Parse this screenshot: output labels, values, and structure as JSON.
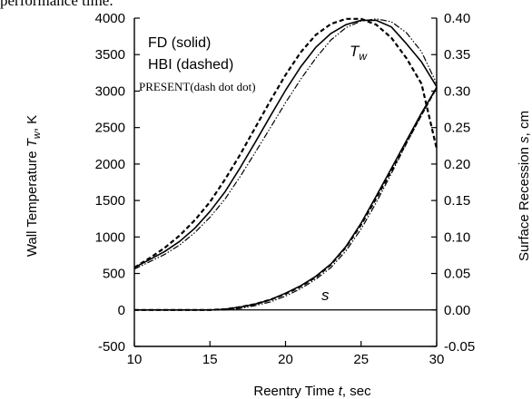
{
  "caption_fragment": "performance time.",
  "chart_data": {
    "type": "line",
    "xlabel": "Reentry Time t, sec",
    "xlabel_parts": [
      "Reentry Time ",
      "t",
      ", sec"
    ],
    "ylabel_left": "Wall Temperature T_w, K",
    "ylabel_left_parts": [
      "Wall Temperature ",
      "T",
      "w",
      ", K"
    ],
    "ylabel_right": "Surface Recession s, cm",
    "ylabel_right_parts": [
      "Surface Recession ",
      "s",
      ", cm"
    ],
    "xlim": [
      10,
      30
    ],
    "ylim_left": [
      -500,
      4000
    ],
    "ylim_right": [
      -0.05,
      0.4
    ],
    "x_ticks": [
      "10",
      "15",
      "20",
      "25",
      "30"
    ],
    "y_left_ticks": [
      "-500",
      "0",
      "500",
      "1000",
      "1500",
      "2000",
      "2500",
      "3000",
      "3500",
      "4000"
    ],
    "y_right_ticks": [
      "-0.05",
      "0.00",
      "0.05",
      "0.10",
      "0.15",
      "0.20",
      "0.25",
      "0.30",
      "0.35",
      "0.40"
    ],
    "legend": [
      "FD (solid)",
      "HBI (dashed)",
      "PRESENT(dash dot dot)"
    ],
    "annotations": {
      "tw_main": "T",
      "tw_sub": "w",
      "s": "s"
    },
    "x": [
      10,
      11,
      12,
      13,
      14,
      15,
      16,
      17,
      18,
      19,
      20,
      21,
      22,
      23,
      24,
      25,
      26,
      27,
      28,
      29,
      30
    ],
    "series": [
      {
        "name": "FD (solid)",
        "axis": "left",
        "style": "solid",
        "values": [
          580,
          690,
          800,
          940,
          1120,
          1350,
          1620,
          1950,
          2300,
          2660,
          3010,
          3330,
          3600,
          3790,
          3910,
          3970,
          3970,
          3880,
          3650,
          3400,
          3060
        ]
      },
      {
        "name": "HBI (dashed)",
        "axis": "left",
        "style": "dashed",
        "values": [
          580,
          710,
          850,
          1020,
          1230,
          1480,
          1790,
          2130,
          2500,
          2870,
          3220,
          3530,
          3770,
          3920,
          3990,
          3990,
          3910,
          3730,
          3450,
          3100,
          2210
        ]
      },
      {
        "name": "PRESENT(dash dot dot)",
        "axis": "left",
        "style": "dashdotdot",
        "values": [
          560,
          660,
          760,
          890,
          1060,
          1270,
          1520,
          1830,
          2160,
          2500,
          2840,
          3160,
          3450,
          3700,
          3870,
          3960,
          3990,
          3950,
          3800,
          3540,
          3100
        ]
      },
      {
        "name": "FD (solid)",
        "axis": "right",
        "style": "solid",
        "values": [
          0.0,
          0.0,
          0.0,
          0.0,
          0.0,
          0.0,
          0.001,
          0.004,
          0.008,
          0.014,
          0.023,
          0.033,
          0.046,
          0.063,
          0.087,
          0.119,
          0.156,
          0.194,
          0.232,
          0.27,
          0.305
        ]
      },
      {
        "name": "HBI (dashed)",
        "axis": "right",
        "style": "dashed",
        "values": [
          0.0,
          0.0,
          0.0,
          0.0,
          0.0,
          0.0,
          0.001,
          0.004,
          0.008,
          0.014,
          0.022,
          0.032,
          0.045,
          0.062,
          0.086,
          0.117,
          0.153,
          0.191,
          0.23,
          0.268,
          0.305
        ]
      },
      {
        "name": "PRESENT(dash dot dot)",
        "axis": "right",
        "style": "dashdotdot",
        "values": [
          0.0,
          0.0,
          0.0,
          0.0,
          0.0,
          0.0,
          0.0,
          0.002,
          0.006,
          0.011,
          0.019,
          0.029,
          0.042,
          0.058,
          0.081,
          0.111,
          0.147,
          0.187,
          0.228,
          0.267,
          0.305
        ]
      }
    ],
    "grid": false,
    "legend_position": "top-left"
  }
}
